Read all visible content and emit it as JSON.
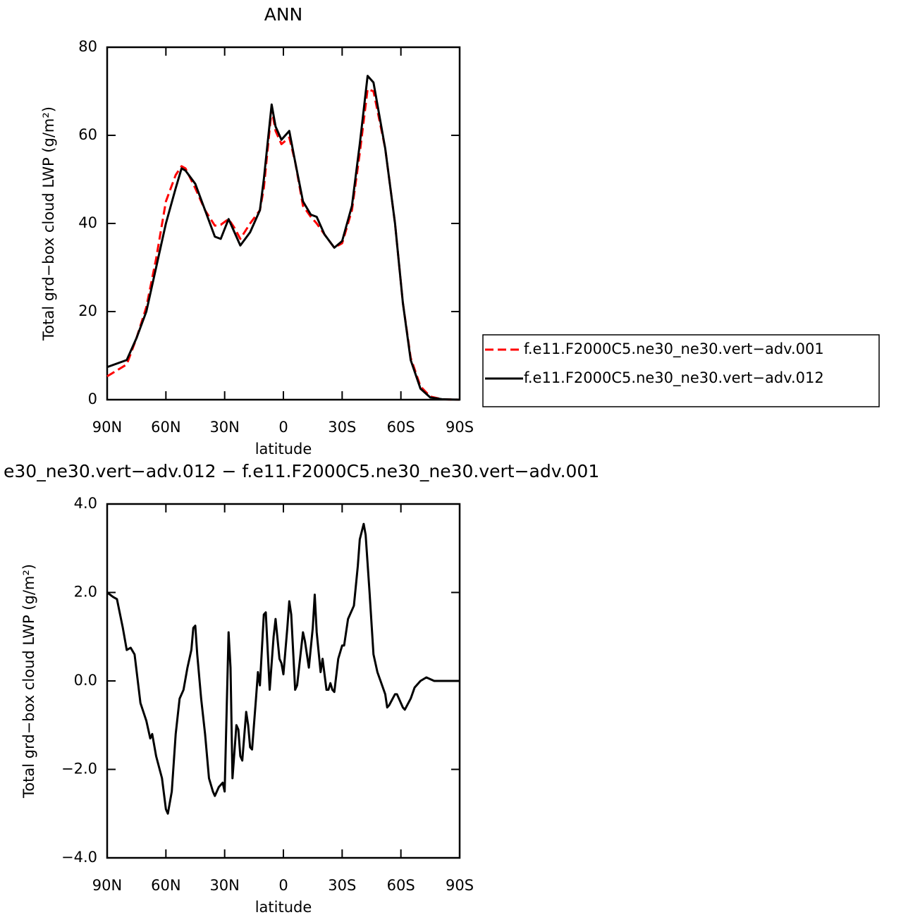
{
  "chart_data": [
    {
      "type": "line",
      "title": "ANN",
      "xlabel": "latitude",
      "ylabel": "Total grd−box cloud LWP (g/m²)",
      "x": [
        90,
        80,
        75,
        70,
        65,
        60,
        55,
        52,
        50,
        45,
        40,
        35,
        32,
        28,
        25,
        22,
        17,
        12,
        10,
        6,
        4,
        1,
        -3,
        -6,
        -10,
        -14,
        -17,
        -21,
        -26,
        -30,
        -35,
        -39,
        -43,
        -46,
        -52,
        -57,
        -61,
        -65,
        -70,
        -75,
        -81,
        -90
      ],
      "series": [
        {
          "name": "f.e11.F2000C5.ne30_ne30.vert−adv.001",
          "color": "#ff0000",
          "dashed": true,
          "values": [
            5.3,
            8,
            14,
            21,
            32,
            45,
            51,
            53,
            52.5,
            48,
            43,
            39.5,
            39.7,
            41,
            39,
            36.5,
            40,
            43,
            48,
            66,
            61,
            58,
            59.5,
            54,
            44,
            41.5,
            40,
            37.5,
            34.5,
            35.5,
            43,
            56,
            70.5,
            70,
            57,
            40,
            22,
            9.5,
            3,
            0.7,
            0.1,
            0
          ]
        },
        {
          "name": "f.e11.F2000C5.ne30_ne30.vert−adv.012",
          "color": "#000000",
          "dashed": false,
          "values": [
            7.4,
            9,
            14,
            20,
            30,
            40,
            48,
            52.5,
            52,
            49,
            43,
            37,
            36.5,
            41,
            38,
            35,
            38,
            43,
            50,
            67,
            62,
            59,
            61,
            54,
            45,
            42,
            41.5,
            37.5,
            34.5,
            36,
            44,
            58,
            73.5,
            72,
            57,
            40,
            22,
            9,
            2.5,
            0.5,
            0.1,
            0
          ]
        }
      ],
      "xlim": [
        90,
        -90
      ],
      "xticks": [
        {
          "value": 90,
          "label": "90N"
        },
        {
          "value": 60,
          "label": "60N"
        },
        {
          "value": 30,
          "label": "30N"
        },
        0,
        {
          "value": -30,
          "label": "30S"
        },
        {
          "value": -60,
          "label": "60S"
        },
        {
          "value": -90,
          "label": "90S"
        }
      ],
      "ylim": [
        0,
        80
      ],
      "yticks": [
        0,
        20,
        40,
        60,
        80
      ],
      "legend": "right"
    },
    {
      "type": "line",
      "title": "e30_ne30.vert−adv.012 − f.e11.F2000C5.ne30_ne30.vert−adv.001",
      "xlabel": "latitude",
      "ylabel": "Total grd−box cloud LWP (g/m²)",
      "x": [
        90,
        87,
        85,
        82,
        80,
        78,
        76,
        73,
        70,
        68,
        67,
        65,
        62,
        60,
        59,
        57,
        55,
        53,
        51,
        49,
        47,
        46,
        45,
        44,
        42,
        40,
        38,
        36,
        35,
        33,
        31,
        30,
        28,
        27,
        26,
        24,
        23,
        22,
        21,
        19,
        18,
        17,
        16,
        14,
        13,
        12,
        10,
        9,
        7,
        5,
        4,
        2,
        1,
        0,
        -2,
        -3,
        -4,
        -6,
        -7,
        -10,
        -11,
        -13,
        -15,
        -16,
        -17,
        -19,
        -20,
        -22,
        -23,
        -24,
        -25,
        -26,
        -28,
        -30,
        -31,
        -33,
        -36,
        -38,
        -39,
        -41,
        -42,
        -44,
        -46,
        -48,
        -50,
        -52,
        -53,
        -54,
        -57,
        -58,
        -61,
        -62,
        -65,
        -67,
        -70,
        -73,
        -77,
        -81,
        -90
      ],
      "color": "#000000",
      "values": [
        2.0,
        1.9,
        1.85,
        1.2,
        0.7,
        0.75,
        0.6,
        -0.5,
        -0.9,
        -1.3,
        -1.2,
        -1.7,
        -2.2,
        -2.9,
        -3.0,
        -2.5,
        -1.2,
        -0.4,
        -0.2,
        0.3,
        0.7,
        1.2,
        1.25,
        0.6,
        -0.4,
        -1.2,
        -2.2,
        -2.5,
        -2.6,
        -2.4,
        -2.3,
        -2.5,
        1.1,
        0.3,
        -2.2,
        -1.0,
        -1.1,
        -1.7,
        -1.8,
        -0.7,
        -1.0,
        -1.5,
        -1.55,
        -0.4,
        0.2,
        -0.1,
        1.5,
        1.55,
        -0.2,
        1.0,
        1.4,
        0.5,
        0.4,
        0.15,
        1.2,
        1.8,
        1.5,
        -0.2,
        -0.1,
        1.1,
        0.9,
        0.3,
        1.2,
        1.95,
        1.1,
        0.2,
        0.5,
        -0.2,
        -0.2,
        -0.05,
        -0.2,
        -0.25,
        0.5,
        0.8,
        0.8,
        1.4,
        1.7,
        2.6,
        3.2,
        3.55,
        3.3,
        2.0,
        0.6,
        0.2,
        -0.05,
        -0.3,
        -0.6,
        -0.55,
        -0.3,
        -0.3,
        -0.6,
        -0.65,
        -0.4,
        -0.15,
        0.0,
        0.08,
        0.0,
        0.0,
        0.0
      ],
      "xlim": [
        90,
        -90
      ],
      "xticks": [
        {
          "value": 90,
          "label": "90N"
        },
        {
          "value": 60,
          "label": "60N"
        },
        {
          "value": 30,
          "label": "30N"
        },
        0,
        {
          "value": -30,
          "label": "30S"
        },
        {
          "value": -60,
          "label": "60S"
        },
        {
          "value": -90,
          "label": "90S"
        }
      ],
      "ylim": [
        -4,
        4
      ],
      "yticks": [
        {
          "value": -4,
          "label": "−4.0"
        },
        {
          "value": -2,
          "label": "−2.0"
        },
        {
          "value": 0,
          "label": "0.0"
        },
        {
          "value": 2,
          "label": "2.0"
        },
        {
          "value": 4,
          "label": "4.0"
        }
      ]
    }
  ]
}
